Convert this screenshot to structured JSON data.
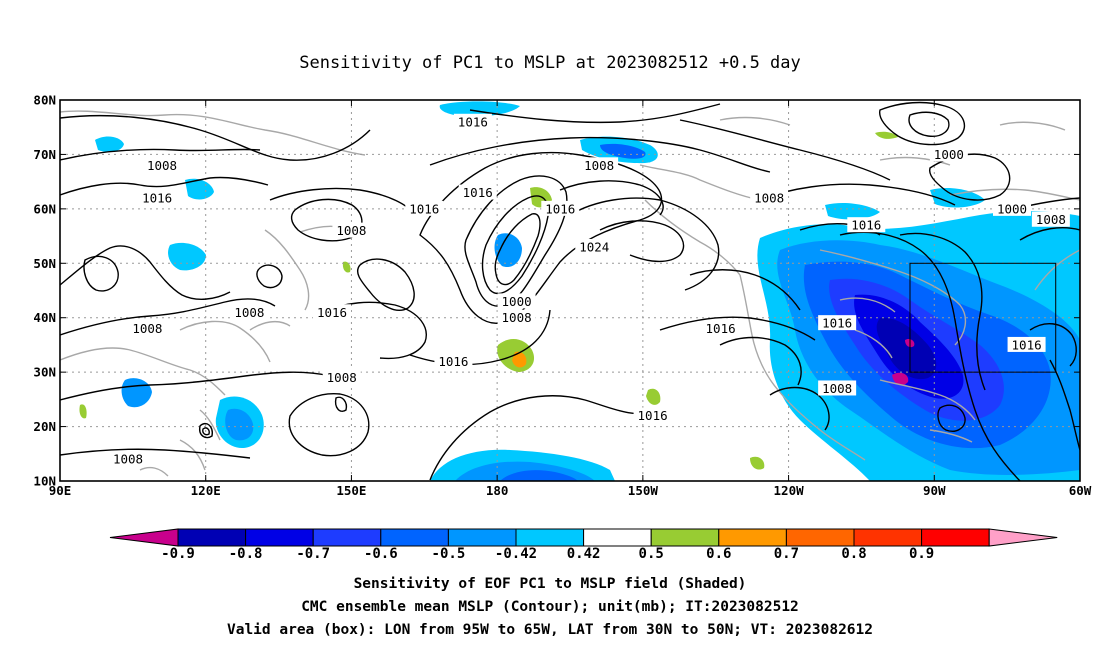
{
  "title": "Sensitivity of PC1 to MSLP at 2023082512 +0.5 day",
  "map": {
    "lon_range": [
      90,
      300
    ],
    "lat_range": [
      10,
      80
    ],
    "lat_ticks": [
      {
        "value": 80,
        "label": "80N"
      },
      {
        "value": 70,
        "label": "70N"
      },
      {
        "value": 60,
        "label": "60N"
      },
      {
        "value": 50,
        "label": "50N"
      },
      {
        "value": 40,
        "label": "40N"
      },
      {
        "value": 30,
        "label": "30N"
      },
      {
        "value": 20,
        "label": "20N"
      },
      {
        "value": 10,
        "label": "10N"
      }
    ],
    "lon_ticks": [
      {
        "value": 90,
        "label": "90E"
      },
      {
        "value": 120,
        "label": "120E"
      },
      {
        "value": 150,
        "label": "150E"
      },
      {
        "value": 180,
        "label": "180"
      },
      {
        "value": 210,
        "label": "150W"
      },
      {
        "value": 240,
        "label": "120W"
      },
      {
        "value": 270,
        "label": "90W"
      },
      {
        "value": 300,
        "label": "60W"
      }
    ],
    "grid_lons": [
      120,
      150,
      180,
      210,
      240,
      270
    ],
    "grid_lats": [
      20,
      30,
      40,
      50,
      60,
      70
    ],
    "valid_box": {
      "lon": [
        265,
        295
      ],
      "lat": [
        30,
        50
      ]
    },
    "contour_labels": [
      {
        "text": "1016",
        "lon": 175,
        "lat": 76
      },
      {
        "text": "1008",
        "lon": 111,
        "lat": 68
      },
      {
        "text": "1008",
        "lon": 201,
        "lat": 68
      },
      {
        "text": "1000",
        "lon": 273,
        "lat": 70
      },
      {
        "text": "1016",
        "lon": 110,
        "lat": 62
      },
      {
        "text": "1016",
        "lon": 176,
        "lat": 63
      },
      {
        "text": "1016",
        "lon": 165,
        "lat": 60
      },
      {
        "text": "1008",
        "lon": 236,
        "lat": 62
      },
      {
        "text": "1016",
        "lon": 193,
        "lat": 60
      },
      {
        "text": "1000",
        "lon": 286,
        "lat": 60
      },
      {
        "text": "1008",
        "lon": 294,
        "lat": 58
      },
      {
        "text": "1008",
        "lon": 150,
        "lat": 56
      },
      {
        "text": "1016",
        "lon": 256,
        "lat": 57
      },
      {
        "text": "1024",
        "lon": 200,
        "lat": 53
      },
      {
        "text": "1000",
        "lon": 184,
        "lat": 43
      },
      {
        "text": "1008",
        "lon": 184,
        "lat": 40
      },
      {
        "text": "1008",
        "lon": 129,
        "lat": 41
      },
      {
        "text": "1016",
        "lon": 146,
        "lat": 41
      },
      {
        "text": "1008",
        "lon": 108,
        "lat": 38
      },
      {
        "text": "1016",
        "lon": 226,
        "lat": 38
      },
      {
        "text": "1016",
        "lon": 250,
        "lat": 39
      },
      {
        "text": "1016",
        "lon": 289,
        "lat": 35
      },
      {
        "text": "1016",
        "lon": 171,
        "lat": 32
      },
      {
        "text": "1008",
        "lon": 148,
        "lat": 29
      },
      {
        "text": "1008",
        "lon": 250,
        "lat": 27
      },
      {
        "text": "1016",
        "lon": 212,
        "lat": 22
      },
      {
        "text": "1008",
        "lon": 104,
        "lat": 14
      }
    ]
  },
  "colorbar": {
    "levels": [
      "-0.9",
      "-0.8",
      "-0.7",
      "-0.6",
      "-0.5",
      "-0.42",
      "0.42",
      "0.5",
      "0.6",
      "0.7",
      "0.8",
      "0.9"
    ],
    "colors": [
      "#0000b4",
      "#0000e6",
      "#1e3cff",
      "#0064ff",
      "#0096ff",
      "#00c8ff",
      "#ffffff",
      "#98cc33",
      "#ff9900",
      "#ff6600",
      "#ff3300",
      "#ff0000"
    ],
    "under_color": "#c8008c",
    "over_color": "#ffa0c8"
  },
  "caption": {
    "line1": "Sensitivity of EOF PC1 to MSLP field (Shaded)",
    "line2": "CMC ensemble mean MSLP (Contour); unit(mb); IT:2023082512",
    "line3": "Valid area (box): LON from 95W to 65W, LAT from 30N to 50N; VT: 2023082612"
  }
}
